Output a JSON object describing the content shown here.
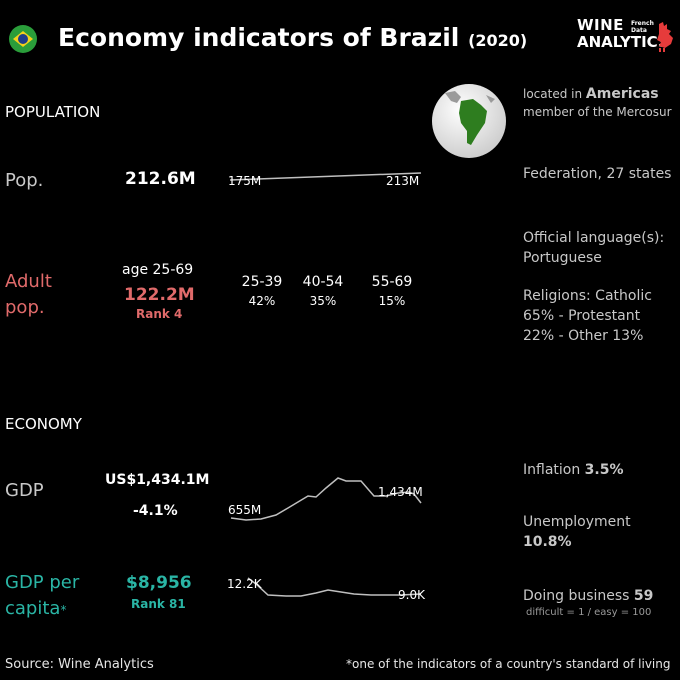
{
  "header": {
    "title": "Economy indicators of Brazil",
    "year": "(2020)",
    "logo_line1": "WINE",
    "logo_line2": "ANALYTICS",
    "logo_small": "French\nData",
    "flag_icon": "brazil-flag-icon",
    "rooster_icon": "rooster-icon"
  },
  "population": {
    "section_label": "POPULATION",
    "pop_label": "Pop.",
    "pop_value": "212.6M",
    "pop_spark": {
      "start_label": "175M",
      "end_label": "213M",
      "values": [
        175,
        213
      ]
    },
    "adult_label_1": "Adult",
    "adult_label_2": "pop.",
    "adult_age": "age 25-69",
    "adult_value": "122.2M",
    "adult_rank": "Rank 4",
    "age_groups": [
      {
        "range": "25-39",
        "share": "42%"
      },
      {
        "range": "40-54",
        "share": "35%"
      },
      {
        "range": "55-69",
        "share": "15%"
      }
    ]
  },
  "profile": {
    "located_prefix": "located in",
    "region": "Americas",
    "member": "member of the Mercosur",
    "government": "Federation, 27 states",
    "language_label": "Official language(s):",
    "language": "Portuguese",
    "religions": "Religions: Catholic 65% - Protestant 22% - Other 13%"
  },
  "economy": {
    "section_label": "ECONOMY",
    "gdp_label": "GDP",
    "gdp_value": "US$1,434.1M",
    "gdp_change": "-4.1%",
    "gdp_spark": {
      "start_label": "655M",
      "end_label": "1,434M"
    },
    "gdppc_label_1": "GDP per",
    "gdppc_label_2": "capita",
    "gdppc_star": "*",
    "gdppc_value": "$8,956",
    "gdppc_rank": "Rank 81",
    "gdppc_spark": {
      "start_label": "12.2K",
      "end_label": "9.0K"
    },
    "inflation_label": "Inflation",
    "inflation_value": "3.5%",
    "unemployment_label": "Unemployment",
    "unemployment_value": "10.8%",
    "doing_business_label": "Doing business",
    "doing_business_value": "59",
    "doing_business_note": "difficult = 1 / easy = 100"
  },
  "footer": {
    "source": "Source: Wine  Analytics",
    "note": "*one of the indicators of a country's standard of living"
  },
  "colors": {
    "background": "#000000",
    "adult_red": "#e06a6a",
    "gdppc_teal": "#2ab5a5",
    "globe_green": "#2e7d1f",
    "spark_line": "#bfbfbf"
  }
}
